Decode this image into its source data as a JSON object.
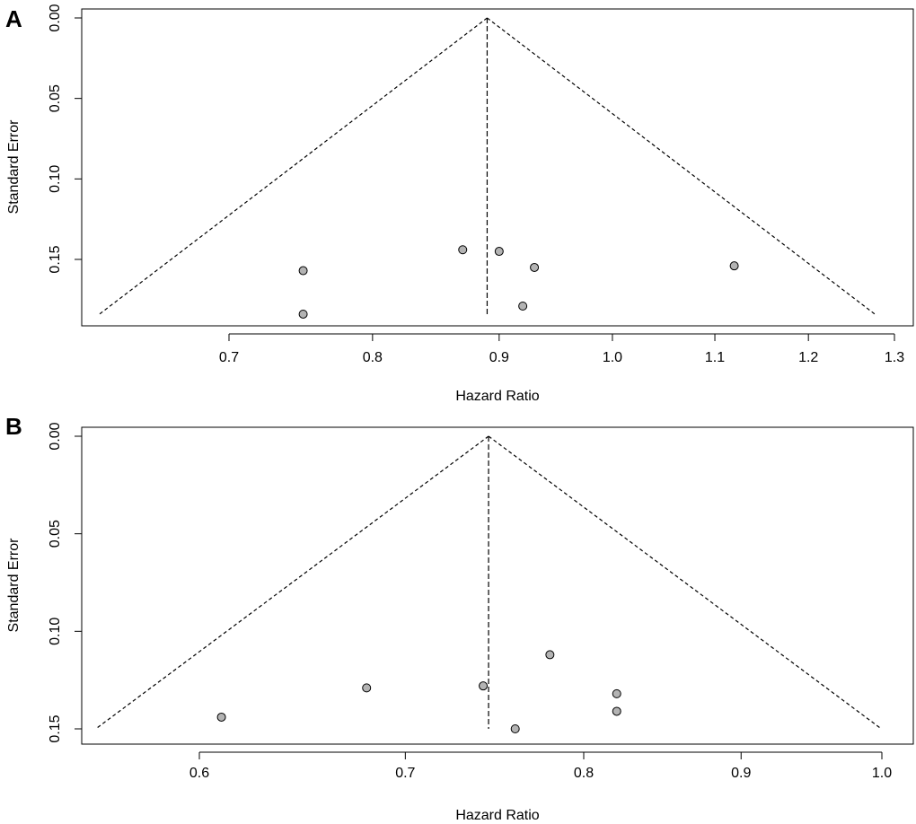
{
  "chart_data": [
    {
      "type": "scatter",
      "panel_label": "A",
      "xlabel": "Hazard Ratio",
      "ylabel": "Standard Error",
      "x_scale": "log",
      "y_reversed": true,
      "xticks": [
        0.7,
        0.8,
        0.9,
        1.0,
        1.1,
        1.2,
        1.3
      ],
      "xtick_labels": [
        "0.7",
        "0.8",
        "0.9",
        "1.0",
        "1.1",
        "1.2",
        "1.3"
      ],
      "yticks": [
        0.0,
        0.05,
        0.1,
        0.15
      ],
      "ytick_labels": [
        "0.00",
        "0.05",
        "0.10",
        "0.15"
      ],
      "xlim": [
        0.6,
        1.32
      ],
      "ylim": [
        0.0,
        0.193
      ],
      "pooled_estimate": 0.89,
      "funnel_max_se": 0.184,
      "grid": false,
      "points": [
        {
          "x": 0.75,
          "y": 0.157
        },
        {
          "x": 0.75,
          "y": 0.184
        },
        {
          "x": 0.87,
          "y": 0.144
        },
        {
          "x": 0.9,
          "y": 0.145
        },
        {
          "x": 0.93,
          "y": 0.155
        },
        {
          "x": 0.92,
          "y": 0.179
        },
        {
          "x": 1.12,
          "y": 0.154
        }
      ]
    },
    {
      "type": "scatter",
      "panel_label": "B",
      "xlabel": "Hazard Ratio",
      "ylabel": "Standard Error",
      "x_scale": "log",
      "y_reversed": true,
      "xticks": [
        0.6,
        0.7,
        0.8,
        0.9,
        1.0
      ],
      "xtick_labels": [
        "0.6",
        "0.7",
        "0.8",
        "0.9",
        "1.0"
      ],
      "yticks": [
        0.0,
        0.05,
        0.1,
        0.15
      ],
      "ytick_labels": [
        "0.00",
        "0.05",
        "0.10",
        "0.15"
      ],
      "xlim": [
        0.545,
        1.02
      ],
      "ylim": [
        0.0,
        0.1525
      ],
      "pooled_estimate": 0.745,
      "funnel_max_se": 0.15,
      "grid": false,
      "points": [
        {
          "x": 0.61,
          "y": 0.144
        },
        {
          "x": 0.68,
          "y": 0.129
        },
        {
          "x": 0.742,
          "y": 0.128
        },
        {
          "x": 0.76,
          "y": 0.15
        },
        {
          "x": 0.78,
          "y": 0.112
        },
        {
          "x": 0.82,
          "y": 0.132
        },
        {
          "x": 0.82,
          "y": 0.141
        }
      ]
    }
  ],
  "style": {
    "point_fill": "#b3b3b3",
    "point_stroke": "#000000",
    "line_color": "#000000"
  }
}
